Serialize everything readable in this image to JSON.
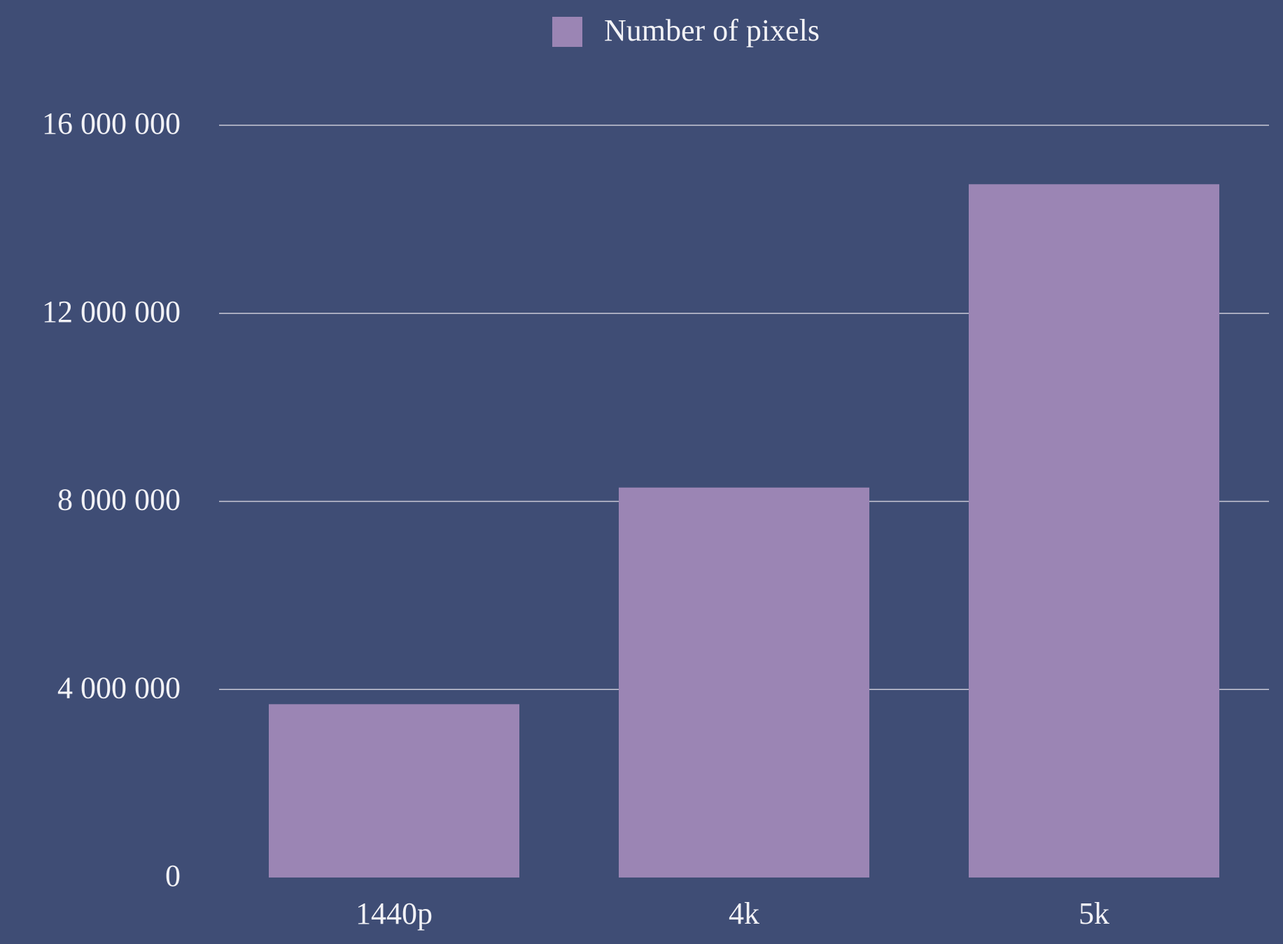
{
  "chart_data": {
    "type": "bar",
    "categories": [
      "1440p",
      "4k",
      "5k"
    ],
    "series": [
      {
        "name": "Number of pixels",
        "color": "#9b85b4",
        "values": [
          3686400,
          8294400,
          14745600
        ]
      }
    ],
    "ylim": [
      0,
      16000000
    ],
    "yticks": [
      0,
      {
        "value": 4000000,
        "label": "4 000 000"
      },
      {
        "value": 8000000,
        "label": "8 000 000"
      },
      {
        "value": 12000000,
        "label": "12 000 000"
      },
      {
        "value": 16000000,
        "label": "16 000 000"
      }
    ],
    "grid": true,
    "legend": "top"
  }
}
